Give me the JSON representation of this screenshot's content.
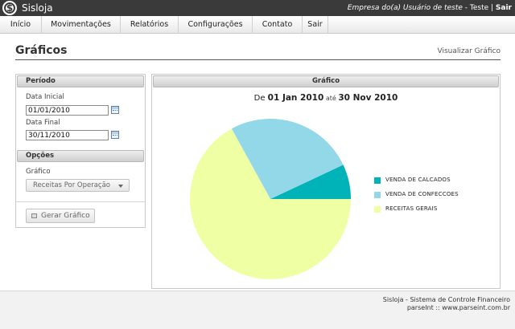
{
  "app": {
    "logo_symbol": "$",
    "name": "Sisloja",
    "company": "Empresa do(a) Usuário de teste",
    "sep": " - ",
    "user": "Teste",
    "pipe": " | ",
    "logout": "Sair"
  },
  "nav": {
    "items": [
      {
        "label": "Início"
      },
      {
        "label": "Movimentações"
      },
      {
        "label": "Relatórios"
      },
      {
        "label": "Configurações"
      },
      {
        "label": "Contato"
      },
      {
        "label": "Sair"
      }
    ]
  },
  "page": {
    "title": "Gráficos",
    "action": "Visualizar Gráfico"
  },
  "periodo": {
    "header": "Período",
    "start_label": "Data Inicial",
    "start_value": "01/01/2010",
    "end_label": "Data Final",
    "end_value": "30/11/2010"
  },
  "opcoes": {
    "header": "Opções",
    "chart_label": "Gráfico",
    "chart_selected": "Receitas Por Operação",
    "generate_label": "Gerar Gráfico"
  },
  "grafico": {
    "header": "Gráfico",
    "title_prefix": "De ",
    "title_start": "01 Jan 2010",
    "title_mid": " até ",
    "title_end": "30 Nov 2010"
  },
  "chart_data": {
    "type": "pie",
    "title": "De 01 Jan 2010 até 30 Nov 2010",
    "categories": [
      "VENDA DE CALCADOS",
      "VENDA DE CONFECCOES",
      "RECEITAS GERAIS"
    ],
    "values": [
      7,
      26,
      67
    ],
    "colors": [
      "#00b3b8",
      "#92d8e8",
      "#eeffa4"
    ],
    "legend": "right"
  },
  "footer": {
    "line1": "Sisloja - Sistema de Controle Financeiro",
    "line2": "parseInt :: www.parseint.com.br"
  }
}
